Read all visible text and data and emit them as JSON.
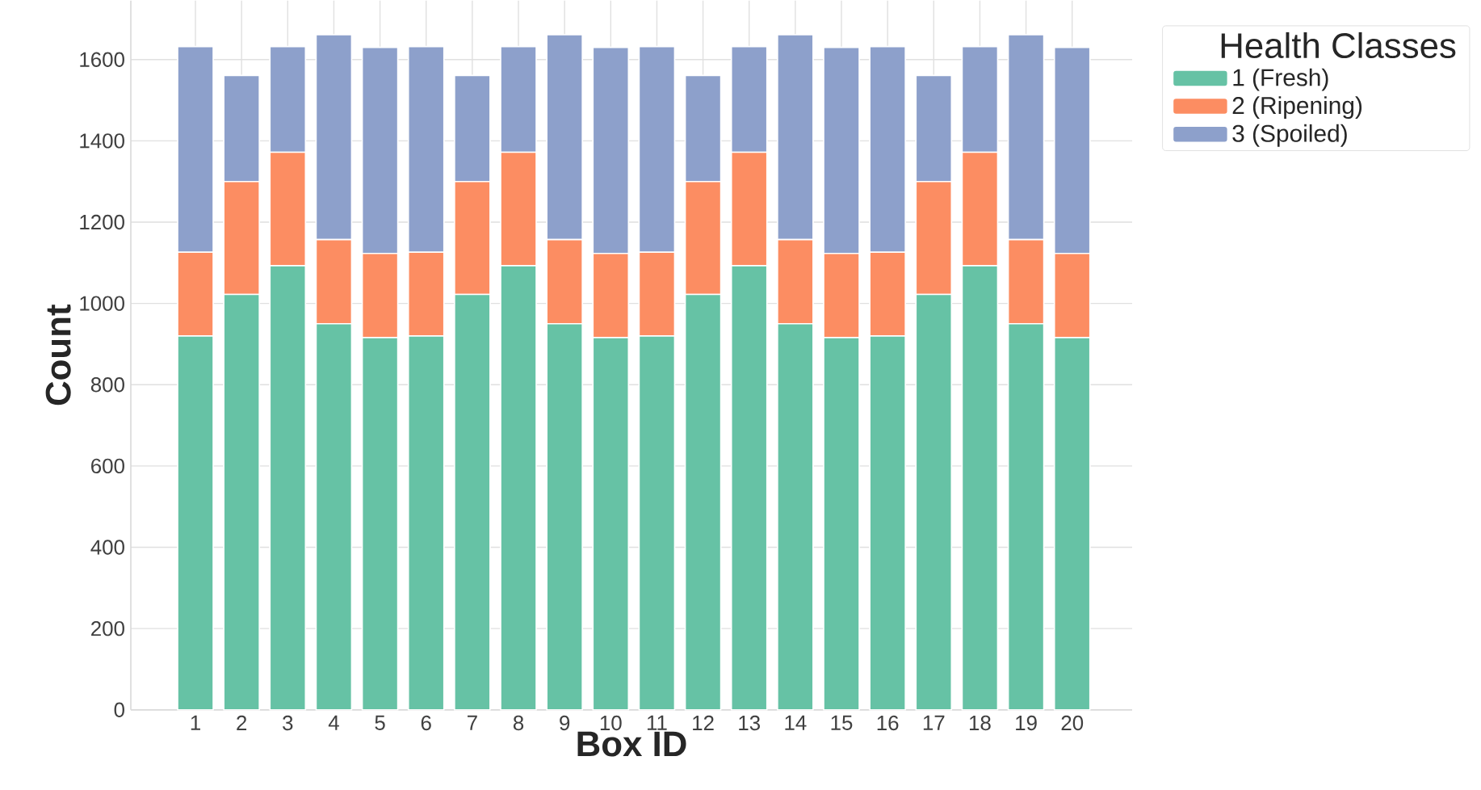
{
  "chart_data": {
    "type": "bar",
    "stacked": true,
    "xlabel": "Box ID",
    "ylabel": "Count",
    "legend_title": "Health Classes",
    "legend": "top right",
    "grid": true,
    "categories": [
      "1",
      "2",
      "3",
      "4",
      "5",
      "6",
      "7",
      "8",
      "9",
      "10",
      "11",
      "12",
      "13",
      "14",
      "15",
      "16",
      "17",
      "18",
      "19",
      "20"
    ],
    "ylim": [
      0,
      1745
    ],
    "yticks": [
      0,
      200,
      400,
      600,
      800,
      1000,
      1200,
      1400,
      1600
    ],
    "series": [
      {
        "name": "1 (Fresh)",
        "color": "#66c2a5",
        "values": [
          920,
          1022,
          1093,
          950,
          916,
          920,
          1022,
          1093,
          950,
          916,
          920,
          1022,
          1093,
          950,
          916,
          920,
          1022,
          1093,
          950,
          916
        ]
      },
      {
        "name": "2 (Ripening)",
        "color": "#fc8d62",
        "values": [
          206,
          278,
          279,
          207,
          207,
          206,
          278,
          279,
          207,
          207,
          206,
          278,
          279,
          207,
          207,
          206,
          278,
          279,
          207,
          207
        ]
      },
      {
        "name": "3 (Spoiled)",
        "color": "#8da0cb",
        "values": [
          506,
          261,
          260,
          504,
          507,
          506,
          261,
          260,
          504,
          507,
          506,
          261,
          260,
          504,
          507,
          506,
          261,
          260,
          504,
          507
        ]
      }
    ]
  }
}
